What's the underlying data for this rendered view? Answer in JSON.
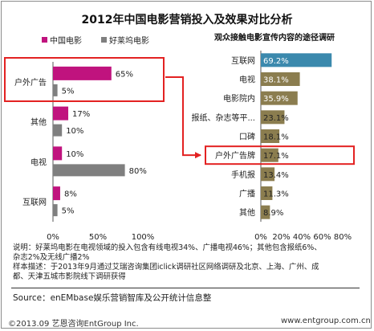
{
  "title": "2012年中国电影营销投入及效果对比分析",
  "colors": {
    "china": "#c0137e",
    "hollywood": "#7f7f7f",
    "awareness_top": "#3b89ad",
    "awareness": "#8b7d4f",
    "highlight": "#e32222"
  },
  "chart_data": [
    {
      "type": "bar",
      "orientation": "horizontal",
      "categories": [
        "户外广告",
        "其他",
        "电视",
        "互联网"
      ],
      "series": [
        {
          "name": "中国电影",
          "values": [
            65,
            17,
            10,
            8
          ]
        },
        {
          "name": "好莱坞电影",
          "values": [
            5,
            10,
            80,
            5
          ]
        }
      ],
      "xlim": [
        0,
        100
      ],
      "xticks": [
        "0%",
        "50%",
        "100%"
      ],
      "value_suffix": "%",
      "legend": "top-left",
      "highlighted_category": "户外广告"
    },
    {
      "type": "bar",
      "orientation": "horizontal",
      "title": "观众接触电影宣传内容的途径调研",
      "categories": [
        "互联网",
        "电视",
        "电影院内",
        "报纸、杂志等平...",
        "口碑",
        "户外广告牌",
        "手机报",
        "广播",
        "其他"
      ],
      "values": [
        69.2,
        38.1,
        35.9,
        23.1,
        18.1,
        17.1,
        13.4,
        11.3,
        8.9
      ],
      "value_labels": [
        "69.2%",
        "38.1%",
        "35.9%",
        "23.1%",
        "18.1%",
        "17.1%",
        "13.4%",
        "11.3%",
        "8.9%"
      ],
      "xlim": [
        0,
        80
      ],
      "xticks": [
        "0%",
        "20%",
        "40%",
        "60%",
        "80%"
      ],
      "highlighted_category": "户外广告牌"
    }
  ],
  "notes": {
    "line1": "说明：好莱坞电影在电视领域的投入包含有线电视34%、广播电视46%；其他包含报纸6%、",
    "line2": "杂志2%及无线广播2%",
    "line3": "样本描述：于2013年9月通过艾瑞咨询集团iclick调研社区网络调研及北京、上海、广州、成",
    "line4": "都、天津五城市影院线下调研获得"
  },
  "source": "Source：enEMbase娱乐营销智库及公开统计信息整",
  "footer": {
    "copyright": "©2013.09  艺恩咨询EntGroup Inc.",
    "url": "www.entgroup.com.cn"
  }
}
